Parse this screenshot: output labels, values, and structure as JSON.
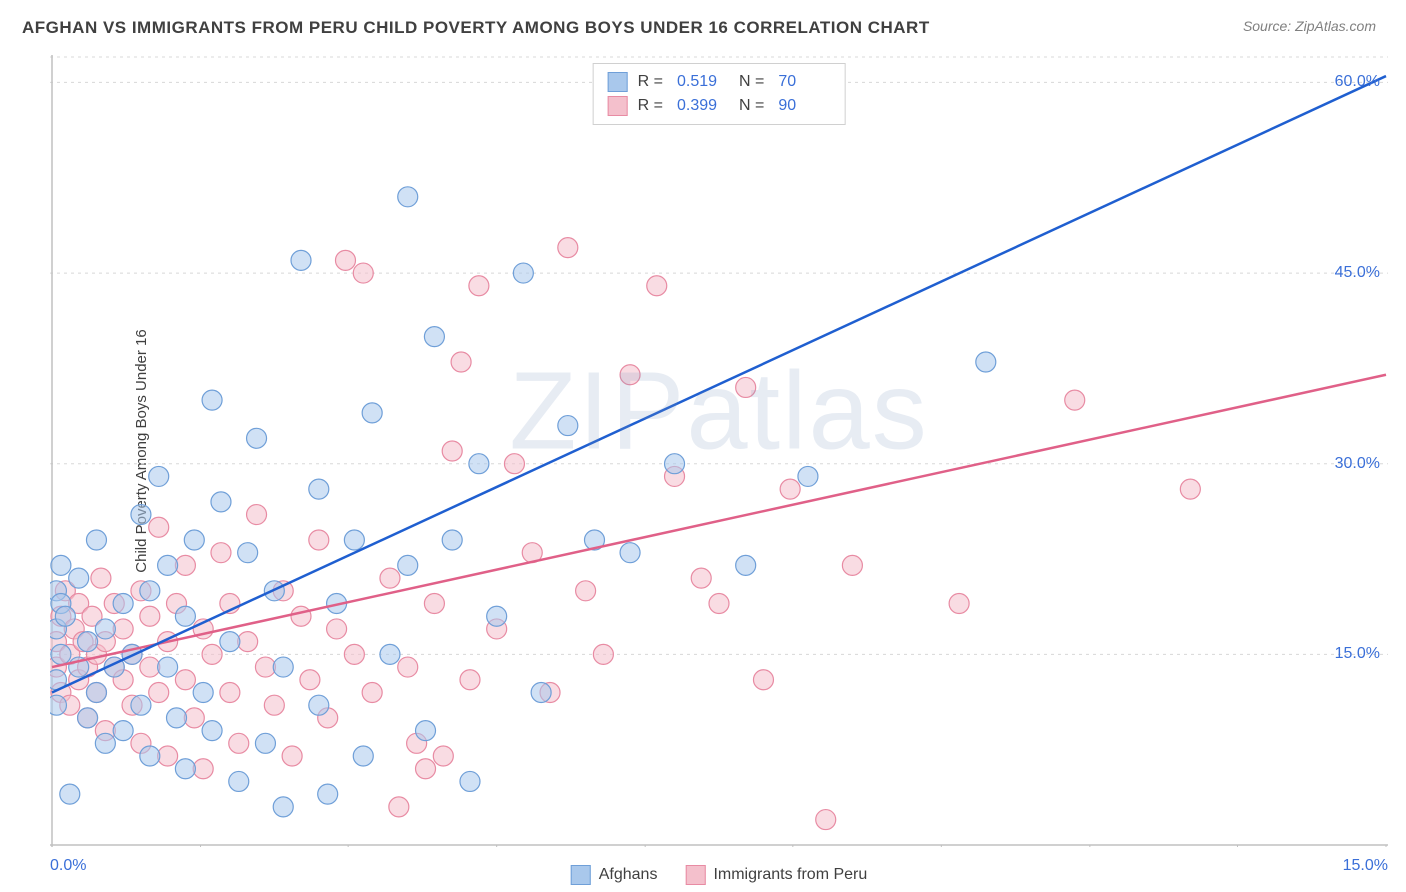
{
  "title": "AFGHAN VS IMMIGRANTS FROM PERU CHILD POVERTY AMONG BOYS UNDER 16 CORRELATION CHART",
  "source": "Source: ZipAtlas.com",
  "ylabel": "Child Poverty Among Boys Under 16",
  "watermark": "ZIPatlas",
  "chart": {
    "type": "scatter",
    "xlim": [
      0,
      15
    ],
    "ylim": [
      0,
      62
    ],
    "x_axis_start_label": "0.0%",
    "x_axis_end_label": "15.0%",
    "x_label_color": "#3a6fd8",
    "y_ticks": [
      15,
      30,
      45,
      60
    ],
    "y_tick_labels": [
      "15.0%",
      "30.0%",
      "45.0%",
      "60.0%"
    ],
    "y_label_color": "#3a6fd8",
    "x_minor_ticks": [
      0,
      1.67,
      3.33,
      5.0,
      6.67,
      8.33,
      10.0,
      11.67,
      13.33,
      15.0
    ],
    "grid_color": "#d8d8d8",
    "axis_color": "#c0c0c0",
    "background": "#ffffff",
    "marker_radius": 10,
    "marker_opacity": 0.55,
    "line_width": 2.5
  },
  "series": {
    "afghans": {
      "label": "Afghans",
      "color_fill": "#a9c8ec",
      "color_stroke": "#6f9fd8",
      "line_color": "#1f5fd0",
      "R": "0.519",
      "N": "70",
      "trend": {
        "x1": 0,
        "y1": 12.0,
        "x2": 15,
        "y2": 60.5
      },
      "points": [
        [
          0.05,
          20
        ],
        [
          0.05,
          17
        ],
        [
          0.05,
          13
        ],
        [
          0.05,
          11
        ],
        [
          0.1,
          22
        ],
        [
          0.1,
          19
        ],
        [
          0.1,
          15
        ],
        [
          0.15,
          18
        ],
        [
          0.3,
          14
        ],
        [
          0.3,
          21
        ],
        [
          0.4,
          10
        ],
        [
          0.4,
          16
        ],
        [
          0.5,
          24
        ],
        [
          0.5,
          12
        ],
        [
          0.6,
          17
        ],
        [
          0.6,
          8
        ],
        [
          0.7,
          14
        ],
        [
          0.8,
          9
        ],
        [
          0.8,
          19
        ],
        [
          0.9,
          15
        ],
        [
          1.0,
          26
        ],
        [
          1.0,
          11
        ],
        [
          1.1,
          20
        ],
        [
          1.1,
          7
        ],
        [
          1.2,
          29
        ],
        [
          1.3,
          14
        ],
        [
          1.3,
          22
        ],
        [
          1.4,
          10
        ],
        [
          1.5,
          18
        ],
        [
          1.5,
          6
        ],
        [
          1.6,
          24
        ],
        [
          1.7,
          12
        ],
        [
          1.8,
          35
        ],
        [
          1.8,
          9
        ],
        [
          1.9,
          27
        ],
        [
          2.0,
          16
        ],
        [
          2.1,
          5
        ],
        [
          2.2,
          23
        ],
        [
          2.3,
          32
        ],
        [
          2.4,
          8
        ],
        [
          2.5,
          20
        ],
        [
          2.6,
          14
        ],
        [
          2.6,
          3
        ],
        [
          2.8,
          46
        ],
        [
          3.0,
          11
        ],
        [
          3.0,
          28
        ],
        [
          3.1,
          4
        ],
        [
          3.2,
          19
        ],
        [
          3.4,
          24
        ],
        [
          3.5,
          7
        ],
        [
          3.6,
          34
        ],
        [
          3.8,
          15
        ],
        [
          4.0,
          51
        ],
        [
          4.0,
          22
        ],
        [
          4.2,
          9
        ],
        [
          4.3,
          40
        ],
        [
          4.5,
          24
        ],
        [
          4.7,
          5
        ],
        [
          4.8,
          30
        ],
        [
          5.0,
          18
        ],
        [
          5.3,
          45
        ],
        [
          5.5,
          12
        ],
        [
          5.8,
          33
        ],
        [
          6.1,
          24
        ],
        [
          6.5,
          23
        ],
        [
          7.0,
          30
        ],
        [
          7.8,
          22
        ],
        [
          8.5,
          29
        ],
        [
          10.5,
          38
        ],
        [
          0.2,
          4
        ]
      ]
    },
    "peru": {
      "label": "Immigrants from Peru",
      "color_fill": "#f4c0cc",
      "color_stroke": "#e88ba3",
      "line_color": "#e06088",
      "R": "0.399",
      "N": "90",
      "trend": {
        "x1": 0,
        "y1": 14.0,
        "x2": 15,
        "y2": 37.0
      },
      "points": [
        [
          0.05,
          16
        ],
        [
          0.05,
          14
        ],
        [
          0.1,
          18
        ],
        [
          0.1,
          12
        ],
        [
          0.15,
          20
        ],
        [
          0.2,
          15
        ],
        [
          0.2,
          11
        ],
        [
          0.25,
          17
        ],
        [
          0.3,
          13
        ],
        [
          0.3,
          19
        ],
        [
          0.35,
          16
        ],
        [
          0.4,
          14
        ],
        [
          0.4,
          10
        ],
        [
          0.45,
          18
        ],
        [
          0.5,
          15
        ],
        [
          0.5,
          12
        ],
        [
          0.55,
          21
        ],
        [
          0.6,
          16
        ],
        [
          0.6,
          9
        ],
        [
          0.7,
          14
        ],
        [
          0.7,
          19
        ],
        [
          0.8,
          13
        ],
        [
          0.8,
          17
        ],
        [
          0.9,
          11
        ],
        [
          0.9,
          15
        ],
        [
          1.0,
          20
        ],
        [
          1.0,
          8
        ],
        [
          1.1,
          14
        ],
        [
          1.1,
          18
        ],
        [
          1.2,
          12
        ],
        [
          1.2,
          25
        ],
        [
          1.3,
          16
        ],
        [
          1.3,
          7
        ],
        [
          1.4,
          19
        ],
        [
          1.5,
          13
        ],
        [
          1.5,
          22
        ],
        [
          1.6,
          10
        ],
        [
          1.7,
          17
        ],
        [
          1.7,
          6
        ],
        [
          1.8,
          15
        ],
        [
          1.9,
          23
        ],
        [
          2.0,
          12
        ],
        [
          2.0,
          19
        ],
        [
          2.1,
          8
        ],
        [
          2.2,
          16
        ],
        [
          2.3,
          26
        ],
        [
          2.4,
          14
        ],
        [
          2.5,
          11
        ],
        [
          2.6,
          20
        ],
        [
          2.7,
          7
        ],
        [
          2.8,
          18
        ],
        [
          2.9,
          13
        ],
        [
          3.0,
          24
        ],
        [
          3.1,
          10
        ],
        [
          3.2,
          17
        ],
        [
          3.3,
          46
        ],
        [
          3.4,
          15
        ],
        [
          3.5,
          45
        ],
        [
          3.6,
          12
        ],
        [
          3.8,
          21
        ],
        [
          4.0,
          14
        ],
        [
          4.1,
          8
        ],
        [
          4.2,
          6
        ],
        [
          4.3,
          19
        ],
        [
          4.5,
          31
        ],
        [
          4.6,
          38
        ],
        [
          4.7,
          13
        ],
        [
          4.8,
          44
        ],
        [
          5.0,
          17
        ],
        [
          5.2,
          30
        ],
        [
          5.4,
          23
        ],
        [
          5.6,
          12
        ],
        [
          5.8,
          47
        ],
        [
          6.0,
          20
        ],
        [
          6.2,
          15
        ],
        [
          6.5,
          37
        ],
        [
          6.8,
          44
        ],
        [
          7.0,
          29
        ],
        [
          7.3,
          21
        ],
        [
          7.5,
          19
        ],
        [
          7.8,
          36
        ],
        [
          8.0,
          13
        ],
        [
          8.3,
          28
        ],
        [
          8.7,
          2
        ],
        [
          9.0,
          22
        ],
        [
          10.2,
          19
        ],
        [
          11.5,
          35
        ],
        [
          12.8,
          28
        ],
        [
          3.9,
          3
        ],
        [
          4.4,
          7
        ]
      ]
    }
  },
  "legend_top": {
    "r_label": "R  =",
    "n_label": "N  ="
  }
}
